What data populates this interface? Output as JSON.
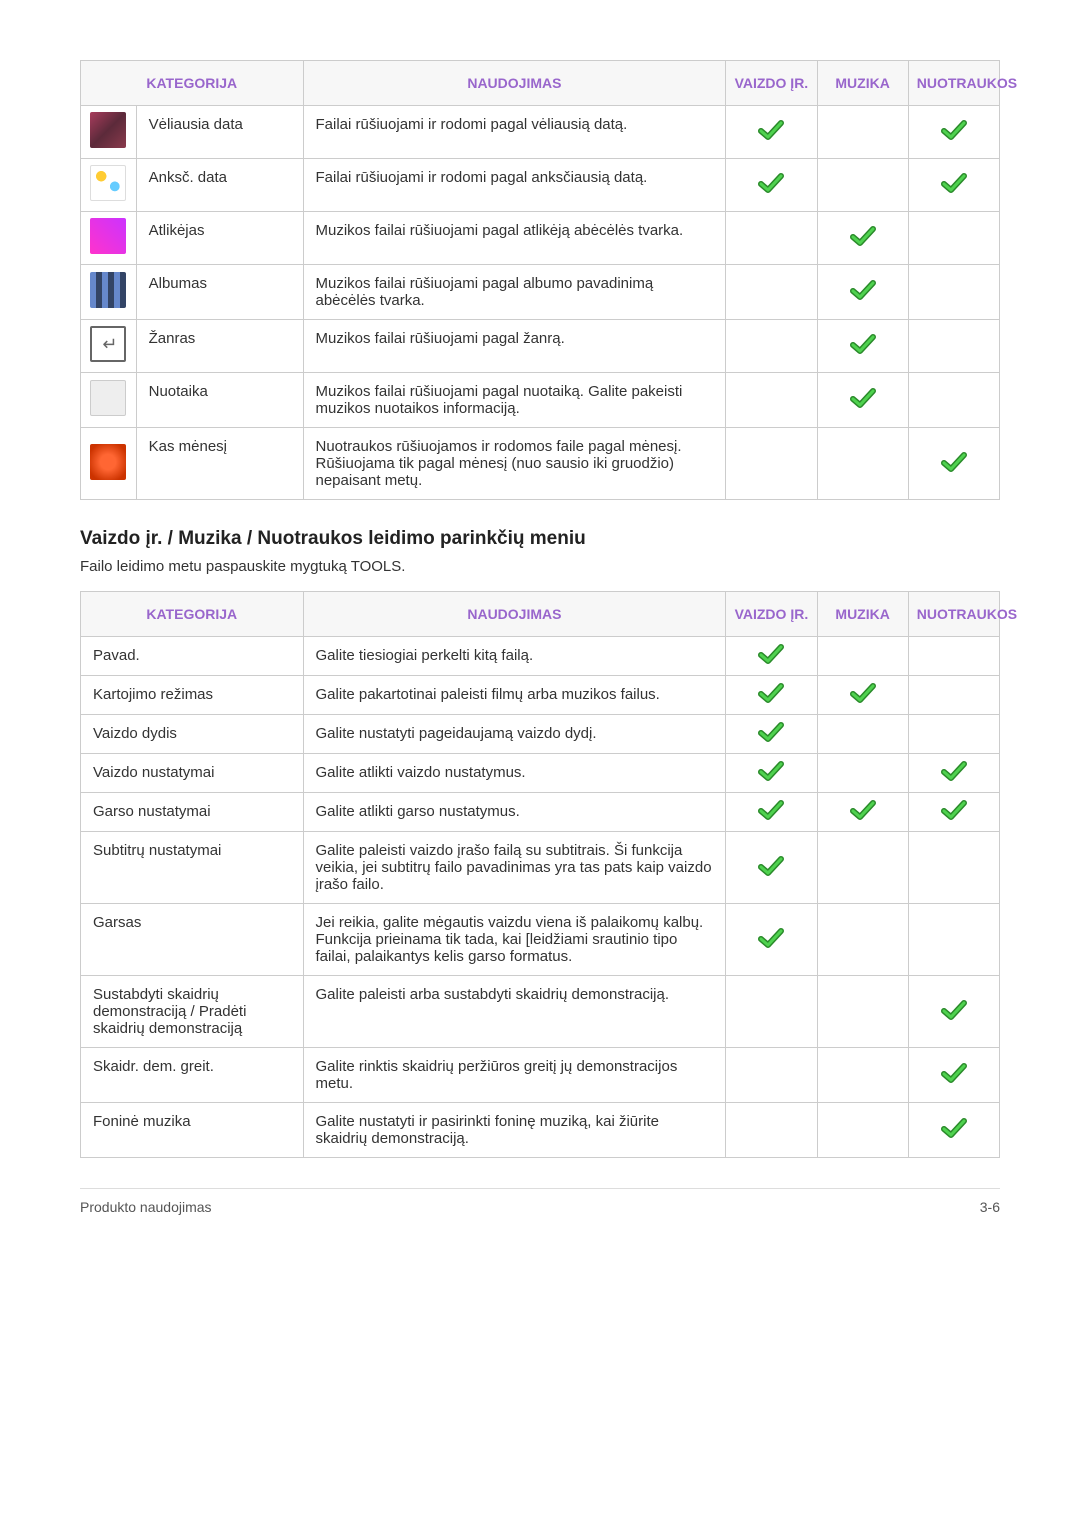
{
  "colors": {
    "header_bg": "#f7f7f7",
    "header_text": "#9966cc",
    "border": "#cccccc",
    "body_text": "#333333",
    "check_outer": "#2a8a2a",
    "check_inner": "#4fd24f"
  },
  "table1": {
    "headers": [
      "KATEGORIJA",
      "NAUDOJIMAS",
      "VAIZDO ĮR.",
      "MUZIKA",
      "NUOTRAUKOS"
    ],
    "col_widths": [
      "50px",
      "150px",
      "380px",
      "82px",
      "82px",
      "82px"
    ],
    "rows": [
      {
        "thumb": "thumb-flowers",
        "cat": "Vėliausia data",
        "use": "Failai rūšiuojami ir rodomi pagal vėliausią datą.",
        "v": true,
        "m": false,
        "n": true
      },
      {
        "thumb": "thumb-dots",
        "cat": "Anksč. data",
        "use": "Failai rūšiuojami ir rodomi pagal anksčiausią datą.",
        "v": true,
        "m": false,
        "n": true
      },
      {
        "thumb": "thumb-pink",
        "cat": "Atlikėjas",
        "use": "Muzikos failai rūšiuojami pagal atlikėją abėcėlės tvarka.",
        "v": false,
        "m": true,
        "n": false
      },
      {
        "thumb": "thumb-pillars",
        "cat": "Albumas",
        "use": "Muzikos failai rūšiuojami pagal albumo pavadinimą abėcėlės tvarka.",
        "v": false,
        "m": true,
        "n": false
      },
      {
        "thumb": "thumb-genre",
        "cat": "Žanras",
        "use": "Muzikos failai rūšiuojami pagal žanrą.",
        "v": false,
        "m": true,
        "n": false
      },
      {
        "thumb": "thumb-mood",
        "cat": "Nuotaika",
        "use": "Muzikos failai rūšiuojami pagal nuotaiką. Galite pakeisti muzikos nuotaikos informaciją.",
        "v": false,
        "m": true,
        "n": false
      },
      {
        "thumb": "thumb-month",
        "cat": "Kas mėnesį",
        "use": "Nuotraukos rūšiuojamos ir rodomos faile pagal mėnesį. Rūšiuojama tik pagal mėnesį (nuo sausio iki gruodžio) nepaisant metų.",
        "v": false,
        "m": false,
        "n": true
      }
    ]
  },
  "section": {
    "title": "Vaizdo įr. / Muzika / Nuotraukos leidimo parinkčių meniu",
    "sub": "Failo leidimo metu paspauskite mygtuką TOOLS."
  },
  "table2": {
    "headers": [
      "KATEGORIJA",
      "NAUDOJIMAS",
      "VAIZDO ĮR.",
      "MUZIKA",
      "NUOTRAUKOS"
    ],
    "col_widths": [
      "200px",
      "380px",
      "82px",
      "82px",
      "82px"
    ],
    "rows": [
      {
        "cat": "Pavad.",
        "use": "Galite tiesiogiai perkelti kitą failą.",
        "v": true,
        "m": false,
        "n": false
      },
      {
        "cat": "Kartojimo režimas",
        "use": "Galite pakartotinai paleisti filmų arba muzikos failus.",
        "v": true,
        "m": true,
        "n": false
      },
      {
        "cat": "Vaizdo dydis",
        "use": "Galite nustatyti pageidaujamą vaizdo dydį.",
        "v": true,
        "m": false,
        "n": false
      },
      {
        "cat": "Vaizdo nustatymai",
        "use": "Galite atlikti vaizdo nustatymus.",
        "v": true,
        "m": false,
        "n": true
      },
      {
        "cat": "Garso nustatymai",
        "use": "Galite atlikti garso nustatymus.",
        "v": true,
        "m": true,
        "n": true
      },
      {
        "cat": "Subtitrų nustatymai",
        "use": "Galite paleisti vaizdo įrašo failą su subtitrais. Ši funkcija veikia, jei subtitrų failo pavadinimas yra tas pats kaip vaizdo įrašo failo.",
        "v": true,
        "m": false,
        "n": false
      },
      {
        "cat": "Garsas",
        "use": "Jei reikia, galite mėgautis vaizdu viena iš palaikomų kalbų. Funkcija prieinama tik tada, kai [leidžiami srautinio tipo failai, palaikantys kelis garso formatus.",
        "v": true,
        "m": false,
        "n": false
      },
      {
        "cat": "Sustabdyti skaidrių demonstraciją / Pradėti skaidrių demonstraciją",
        "use": "Galite paleisti arba sustabdyti skaidrių demonstraciją.",
        "v": false,
        "m": false,
        "n": true
      },
      {
        "cat": "Skaidr. dem. greit.",
        "use": "Galite rinktis skaidrių peržiūros greitį jų demonstracijos metu.",
        "v": false,
        "m": false,
        "n": true
      },
      {
        "cat": "Foninė muzika",
        "use": "Galite nustatyti ir pasirinkti foninę muziką, kai žiūrite skaidrių demonstraciją.",
        "v": false,
        "m": false,
        "n": true
      }
    ]
  },
  "footer": {
    "left": "Produkto naudojimas",
    "right": "3-6"
  }
}
